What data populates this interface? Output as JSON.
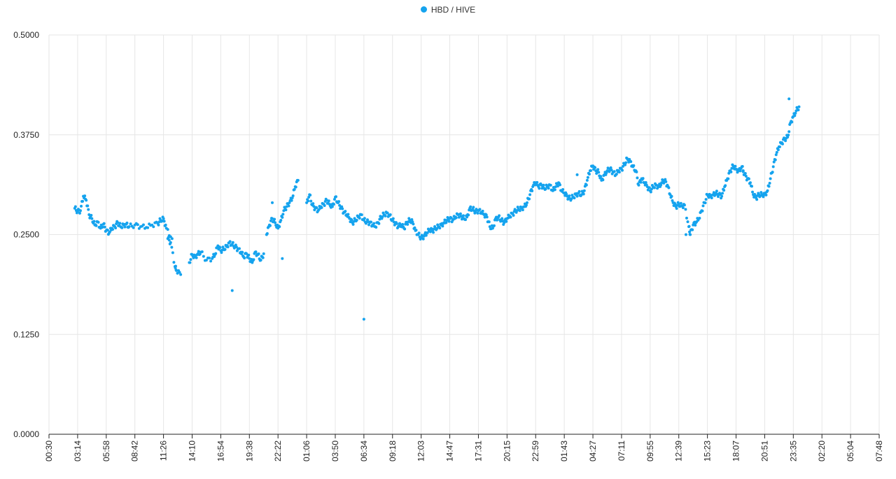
{
  "colors": {
    "series": "#15a3ee",
    "grid": "#e6e6e6",
    "axis": "#222222"
  },
  "chart_data": {
    "type": "scatter",
    "title": "",
    "xlabel": "",
    "ylabel": "",
    "legend_position": "top-center",
    "grid": true,
    "ylim": [
      0,
      0.5
    ],
    "y_ticks": [
      "0.0000",
      "0.1250",
      "0.2500",
      "0.3750",
      "0.5000"
    ],
    "x_ticks": [
      "00:30",
      "03:14",
      "05:58",
      "08:42",
      "11:26",
      "14:10",
      "16:54",
      "19:38",
      "22:22",
      "01:06",
      "03:50",
      "06:34",
      "09:18",
      "12:03",
      "14:47",
      "17:31",
      "20:15",
      "22:59",
      "01:43",
      "04:27",
      "07:11",
      "09:55",
      "12:39",
      "15:23",
      "18:07",
      "20:51",
      "23:35",
      "02:20",
      "05:04",
      "07:48"
    ],
    "series": [
      {
        "name": "HBD / HIVE",
        "points": [
          [
            0.9,
            0.283
          ],
          [
            1.0,
            0.279
          ],
          [
            1.1,
            0.28
          ],
          [
            1.2,
            0.298
          ],
          [
            1.3,
            0.293
          ],
          [
            1.4,
            0.275
          ],
          [
            1.5,
            0.27
          ],
          [
            1.6,
            0.262
          ],
          [
            1.7,
            0.266
          ],
          [
            1.8,
            0.258
          ],
          [
            1.9,
            0.263
          ],
          [
            2.0,
            0.255
          ],
          [
            2.1,
            0.252
          ],
          [
            2.2,
            0.258
          ],
          [
            2.3,
            0.26
          ],
          [
            2.4,
            0.265
          ],
          [
            2.5,
            0.26
          ],
          [
            2.6,
            0.262
          ],
          [
            2.7,
            0.263
          ],
          [
            2.8,
            0.26
          ],
          [
            3.0,
            0.262
          ],
          [
            3.2,
            0.26
          ],
          [
            3.4,
            0.259
          ],
          [
            3.6,
            0.262
          ],
          [
            3.8,
            0.264
          ],
          [
            3.9,
            0.268
          ],
          [
            4.0,
            0.27
          ],
          [
            4.1,
            0.258
          ],
          [
            4.3,
            0.245
          ],
          [
            4.15,
            0.245
          ],
          [
            4.25,
            0.24
          ],
          [
            4.4,
            0.21
          ],
          [
            4.45,
            0.205
          ],
          [
            4.6,
            0.2
          ],
          [
            4.9,
            0.215
          ],
          [
            5.0,
            0.225
          ],
          [
            5.1,
            0.222
          ],
          [
            5.2,
            0.226
          ],
          [
            5.3,
            0.228
          ],
          [
            5.5,
            0.218
          ],
          [
            5.7,
            0.22
          ],
          [
            5.8,
            0.225
          ],
          [
            5.9,
            0.236
          ],
          [
            6.0,
            0.23
          ],
          [
            6.1,
            0.232
          ],
          [
            6.2,
            0.235
          ],
          [
            6.3,
            0.24
          ],
          [
            6.4,
            0.238
          ],
          [
            6.5,
            0.235
          ],
          [
            6.6,
            0.232
          ],
          [
            6.7,
            0.228
          ],
          [
            6.8,
            0.222
          ],
          [
            6.9,
            0.226
          ],
          [
            7.0,
            0.22
          ],
          [
            7.1,
            0.215
          ],
          [
            7.2,
            0.228
          ],
          [
            7.3,
            0.225
          ],
          [
            7.4,
            0.218
          ],
          [
            7.5,
            0.226
          ],
          [
            6.4,
            0.18
          ],
          [
            7.6,
            0.25
          ],
          [
            7.7,
            0.262
          ],
          [
            7.8,
            0.27
          ],
          [
            7.9,
            0.265
          ],
          [
            8.0,
            0.258
          ],
          [
            8.1,
            0.268
          ],
          [
            8.2,
            0.28
          ],
          [
            8.3,
            0.285
          ],
          [
            8.4,
            0.29
          ],
          [
            8.5,
            0.296
          ],
          [
            8.6,
            0.31
          ],
          [
            8.7,
            0.318
          ],
          [
            7.8,
            0.29
          ],
          [
            8.15,
            0.22
          ],
          [
            9.0,
            0.29
          ],
          [
            9.1,
            0.3
          ],
          [
            9.2,
            0.287
          ],
          [
            9.3,
            0.283
          ],
          [
            9.4,
            0.28
          ],
          [
            9.5,
            0.285
          ],
          [
            9.6,
            0.288
          ],
          [
            9.7,
            0.293
          ],
          [
            9.8,
            0.288
          ],
          [
            9.9,
            0.285
          ],
          [
            10.0,
            0.297
          ],
          [
            10.1,
            0.29
          ],
          [
            10.2,
            0.284
          ],
          [
            10.3,
            0.278
          ],
          [
            10.4,
            0.275
          ],
          [
            10.5,
            0.27
          ],
          [
            10.6,
            0.265
          ],
          [
            10.7,
            0.268
          ],
          [
            10.8,
            0.272
          ],
          [
            10.9,
            0.275
          ],
          [
            11.0,
            0.268
          ],
          [
            11.1,
            0.266
          ],
          [
            11.2,
            0.265
          ],
          [
            11.3,
            0.262
          ],
          [
            11.4,
            0.26
          ],
          [
            11.5,
            0.265
          ],
          [
            11.6,
            0.272
          ],
          [
            11.7,
            0.275
          ],
          [
            11.8,
            0.277
          ],
          [
            11.9,
            0.274
          ],
          [
            12.0,
            0.268
          ],
          [
            12.1,
            0.264
          ],
          [
            12.2,
            0.26
          ],
          [
            12.3,
            0.262
          ],
          [
            12.4,
            0.258
          ],
          [
            12.5,
            0.265
          ],
          [
            12.6,
            0.268
          ],
          [
            12.7,
            0.266
          ],
          [
            12.8,
            0.255
          ],
          [
            12.9,
            0.25
          ],
          [
            13.0,
            0.246
          ],
          [
            13.1,
            0.248
          ],
          [
            13.2,
            0.252
          ],
          [
            13.3,
            0.256
          ],
          [
            13.4,
            0.255
          ],
          [
            13.5,
            0.258
          ],
          [
            13.6,
            0.26
          ],
          [
            13.7,
            0.262
          ],
          [
            13.8,
            0.265
          ],
          [
            13.9,
            0.268
          ],
          [
            14.0,
            0.27
          ],
          [
            14.1,
            0.268
          ],
          [
            14.2,
            0.272
          ],
          [
            14.3,
            0.275
          ],
          [
            14.4,
            0.273
          ],
          [
            14.5,
            0.27
          ],
          [
            14.6,
            0.272
          ],
          [
            14.7,
            0.283
          ],
          [
            14.8,
            0.282
          ],
          [
            14.9,
            0.279
          ],
          [
            15.0,
            0.28
          ],
          [
            15.1,
            0.278
          ],
          [
            15.2,
            0.275
          ],
          [
            15.3,
            0.272
          ],
          [
            15.4,
            0.26
          ],
          [
            15.5,
            0.258
          ],
          [
            15.6,
            0.27
          ],
          [
            15.7,
            0.272
          ],
          [
            15.8,
            0.268
          ],
          [
            15.9,
            0.265
          ],
          [
            16.0,
            0.27
          ],
          [
            16.1,
            0.273
          ],
          [
            16.2,
            0.276
          ],
          [
            16.3,
            0.28
          ],
          [
            16.4,
            0.282
          ],
          [
            16.5,
            0.283
          ],
          [
            16.6,
            0.285
          ],
          [
            16.7,
            0.29
          ],
          [
            16.8,
            0.3
          ],
          [
            16.9,
            0.31
          ],
          [
            17.0,
            0.315
          ],
          [
            17.1,
            0.31
          ],
          [
            17.2,
            0.312
          ],
          [
            17.3,
            0.308
          ],
          [
            17.4,
            0.31
          ],
          [
            17.5,
            0.312
          ],
          [
            17.6,
            0.305
          ],
          [
            17.7,
            0.31
          ],
          [
            17.8,
            0.315
          ],
          [
            17.9,
            0.305
          ],
          [
            18.0,
            0.302
          ],
          [
            18.1,
            0.298
          ],
          [
            18.2,
            0.295
          ],
          [
            18.3,
            0.297
          ],
          [
            18.4,
            0.3
          ],
          [
            18.5,
            0.302
          ],
          [
            18.6,
            0.3
          ],
          [
            18.7,
            0.305
          ],
          [
            18.8,
            0.318
          ],
          [
            18.9,
            0.33
          ],
          [
            19.0,
            0.336
          ],
          [
            19.1,
            0.33
          ],
          [
            19.2,
            0.328
          ],
          [
            19.3,
            0.318
          ],
          [
            19.4,
            0.325
          ],
          [
            19.5,
            0.33
          ],
          [
            19.6,
            0.332
          ],
          [
            19.7,
            0.328
          ],
          [
            19.8,
            0.325
          ],
          [
            19.9,
            0.33
          ],
          [
            20.0,
            0.332
          ],
          [
            20.1,
            0.338
          ],
          [
            20.2,
            0.345
          ],
          [
            20.3,
            0.342
          ],
          [
            20.4,
            0.335
          ],
          [
            20.5,
            0.33
          ],
          [
            20.6,
            0.312
          ],
          [
            20.7,
            0.32
          ],
          [
            20.8,
            0.315
          ],
          [
            20.9,
            0.31
          ],
          [
            21.0,
            0.305
          ],
          [
            21.1,
            0.31
          ],
          [
            21.2,
            0.312
          ],
          [
            21.3,
            0.31
          ],
          [
            21.4,
            0.315
          ],
          [
            21.5,
            0.318
          ],
          [
            21.6,
            0.312
          ],
          [
            21.7,
            0.3
          ],
          [
            21.8,
            0.29
          ],
          [
            21.9,
            0.285
          ],
          [
            22.0,
            0.288
          ],
          [
            22.1,
            0.286
          ],
          [
            22.2,
            0.287
          ],
          [
            22.35,
            0.26
          ],
          [
            22.4,
            0.25
          ],
          [
            22.5,
            0.262
          ],
          [
            22.6,
            0.265
          ],
          [
            22.7,
            0.27
          ],
          [
            22.8,
            0.28
          ],
          [
            22.9,
            0.29
          ],
          [
            23.0,
            0.3
          ],
          [
            23.1,
            0.298
          ],
          [
            23.2,
            0.3
          ],
          [
            23.3,
            0.302
          ],
          [
            23.4,
            0.3
          ],
          [
            23.5,
            0.298
          ],
          [
            23.6,
            0.31
          ],
          [
            23.7,
            0.32
          ],
          [
            23.8,
            0.33
          ],
          [
            23.9,
            0.336
          ],
          [
            24.0,
            0.332
          ],
          [
            24.1,
            0.33
          ],
          [
            24.2,
            0.335
          ],
          [
            24.3,
            0.325
          ],
          [
            24.4,
            0.32
          ],
          [
            24.5,
            0.315
          ],
          [
            24.6,
            0.3
          ],
          [
            24.7,
            0.296
          ],
          [
            24.8,
            0.3
          ],
          [
            24.9,
            0.3
          ],
          [
            25.0,
            0.3
          ],
          [
            25.1,
            0.305
          ],
          [
            25.2,
            0.32
          ],
          [
            25.3,
            0.335
          ],
          [
            25.4,
            0.35
          ],
          [
            25.5,
            0.36
          ],
          [
            25.6,
            0.365
          ],
          [
            25.7,
            0.37
          ],
          [
            25.8,
            0.372
          ],
          [
            25.9,
            0.39
          ],
          [
            26.0,
            0.398
          ],
          [
            26.1,
            0.405
          ],
          [
            26.2,
            0.41
          ],
          [
            25.85,
            0.42
          ],
          [
            11.0,
            0.144
          ],
          [
            22.25,
            0.25
          ],
          [
            24.25,
            0.33
          ],
          [
            18.45,
            0.325
          ]
        ]
      }
    ]
  }
}
